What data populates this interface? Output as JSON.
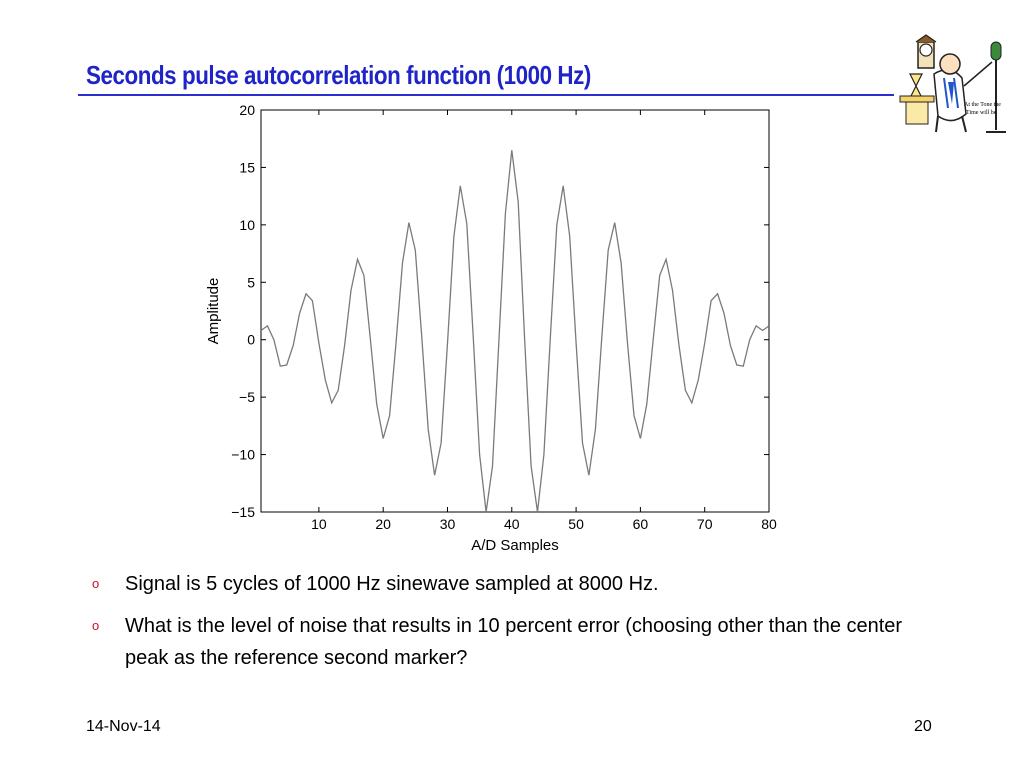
{
  "slide": {
    "title": "Seconds pulse autocorrelation function (1000 Hz)",
    "accent_color": "#1f24c8",
    "bullet_marker": "o",
    "bullet_marker_color": "#c8102e",
    "bullets": [
      "Signal is 5 cycles of 1000 Hz sinewave sampled at 8000 Hz.",
      "What is the level of noise that results in 10 percent error (choosing other than the center peak as the reference second marker?"
    ],
    "footer_date": "14-Nov-14",
    "page_number": "20",
    "logo_text": [
      "At the Tone the",
      "Time will be"
    ]
  },
  "chart_data": {
    "type": "line",
    "title": "",
    "xlabel": "A/D Samples",
    "ylabel": "Amplitude",
    "xlim": [
      1,
      80
    ],
    "ylim": [
      -15,
      20
    ],
    "xticks": [
      10,
      20,
      30,
      40,
      50,
      60,
      70,
      80
    ],
    "yticks": [
      -15,
      -10,
      -5,
      0,
      5,
      10,
      15,
      20
    ],
    "ytick_labels": [
      "−15",
      "−10",
      "−5",
      "0",
      "5",
      "10",
      "15",
      "20"
    ],
    "grid": false,
    "line_color": "#7a7a7a",
    "series": [
      {
        "x": [
          1,
          2,
          3,
          4,
          5,
          6,
          7,
          8,
          9,
          10,
          11,
          12,
          13,
          14,
          15,
          16,
          17,
          18,
          19,
          20,
          21,
          22,
          23,
          24,
          25,
          26,
          27,
          28,
          29,
          30,
          31,
          32,
          33,
          34,
          35,
          36,
          37,
          38,
          39,
          40,
          41,
          42,
          43,
          44,
          45,
          46,
          47,
          48,
          49,
          50,
          51,
          52,
          53,
          54,
          55,
          56,
          57,
          58,
          59,
          60,
          61,
          62,
          63,
          64,
          65,
          66,
          67,
          68,
          69,
          70,
          71,
          72,
          73,
          74,
          75,
          76,
          77,
          78,
          79,
          80
        ],
        "values": [
          0.8,
          1.2,
          0,
          -2.3,
          -2.2,
          -0.5,
          2.3,
          4,
          3.4,
          -0.3,
          -3.5,
          -5.5,
          -4.4,
          -0.5,
          4.3,
          7,
          5.6,
          0.1,
          -5.6,
          -8.6,
          -6.6,
          -0.3,
          6.7,
          10.2,
          7.8,
          0.2,
          -7.8,
          -11.8,
          -9,
          -0.3,
          9,
          13.4,
          10.1,
          0.3,
          -10,
          -15,
          -11,
          -0.1,
          11,
          16.5,
          12,
          0.1,
          -11,
          -15,
          -10,
          0.3,
          10,
          13.4,
          9,
          -0.3,
          -9,
          -11.8,
          -7.8,
          0.2,
          7.8,
          10.2,
          6.7,
          -0.3,
          -6.6,
          -8.6,
          -5.6,
          0.1,
          5.6,
          7,
          4.3,
          -0.5,
          -4.4,
          -5.5,
          -3.5,
          -0.3,
          3.4,
          4,
          2.3,
          -0.5,
          -2.2,
          -2.3,
          0,
          1.2,
          0.8,
          1.2
        ]
      }
    ]
  }
}
